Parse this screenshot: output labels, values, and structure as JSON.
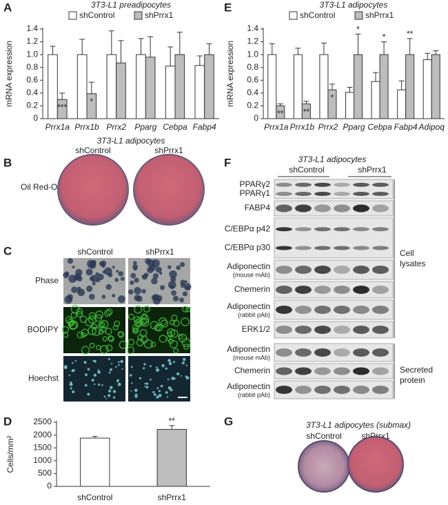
{
  "panel_letters": [
    "A",
    "B",
    "C",
    "D",
    "E",
    "F",
    "G"
  ],
  "chart_data": [
    {
      "type": "bar",
      "title": "3T3-L1 preadipocytes",
      "y_label": "mRNA expression",
      "italic_categories": true,
      "categories": [
        "Prrx1a",
        "Prrx1b",
        "Prrx2",
        "Pparg",
        "Cebpa",
        "Fabp4"
      ],
      "series": [
        {
          "name": "shControl",
          "color": "#ffffff",
          "values": [
            1.0,
            1.0,
            1.0,
            1.0,
            0.82,
            0.83
          ],
          "errors": [
            0.13,
            0.24,
            0.37,
            0.25,
            0.3,
            0.15
          ],
          "annotations": [
            null,
            null,
            null,
            null,
            null,
            null
          ]
        },
        {
          "name": "shPrrx1",
          "color": "#bdbdbd",
          "values": [
            0.3,
            0.39,
            0.87,
            0.96,
            1.0,
            1.0
          ],
          "errors": [
            0.1,
            0.18,
            0.35,
            0.32,
            0.35,
            0.17
          ],
          "annotations": [
            "***",
            "*",
            null,
            null,
            null,
            null
          ]
        }
      ],
      "ylim": [
        0,
        1.4
      ],
      "yticks": [
        0,
        0.2,
        0.4,
        0.6,
        0.8,
        {
          "value": 1,
          "label": "1.0"
        },
        1.2,
        1.4
      ]
    },
    {
      "type": "bar",
      "title": "3T3-L1 adipocytes",
      "y_label": "mRNA expression",
      "italic_categories": true,
      "categories": [
        "Prrx1a",
        "Prrx1b",
        "Prrx2",
        "Pparg",
        "Cebpa",
        "Fabp4",
        "Adipoq"
      ],
      "series": [
        {
          "name": "shControl",
          "color": "#ffffff",
          "values": [
            1.0,
            1.0,
            1.0,
            0.41,
            0.58,
            0.45,
            0.92
          ],
          "errors": [
            0.17,
            0.1,
            0.18,
            0.08,
            0.14,
            0.14,
            0.1
          ],
          "annotations": [
            null,
            null,
            null,
            null,
            null,
            null,
            null
          ]
        },
        {
          "name": "shPrrx1",
          "color": "#bdbdbd",
          "values": [
            0.2,
            0.23,
            0.45,
            1.0,
            1.0,
            1.0,
            1.0
          ],
          "errors": [
            0.03,
            0.04,
            0.09,
            0.32,
            0.2,
            0.25,
            0.06
          ],
          "annotations": [
            "**",
            "**",
            "*",
            "*",
            "*",
            "**",
            null
          ]
        }
      ],
      "ylim": [
        0,
        1.4
      ],
      "yticks": [
        0,
        0.2,
        0.4,
        0.6,
        0.8,
        {
          "value": 1,
          "label": "1.0"
        },
        1.2,
        1.4
      ]
    },
    {
      "type": "bar",
      "y_label": "Cells/mm²",
      "italic_categories": false,
      "categories": [
        "shControl",
        "shPrrx1"
      ],
      "values": [
        1880,
        2220
      ],
      "errors": [
        70,
        150
      ],
      "colors": [
        "#ffffff",
        "#bdbdbd"
      ],
      "annotations": [
        null,
        "**"
      ],
      "ylim": [
        0,
        2500
      ],
      "yticks": [
        0,
        500,
        1000,
        1500,
        2000,
        2500
      ]
    }
  ],
  "panel_b": {
    "title": "3T3-L1 adipocytes",
    "columns": [
      "shControl",
      "shPrrx1"
    ],
    "row_label": "Oil Red-O"
  },
  "panel_c": {
    "columns": [
      "shControl",
      "shPrrx1"
    ],
    "rows": [
      "Phase",
      "BODIPY",
      "Hoechst"
    ]
  },
  "panel_f": {
    "title": "3T3-L1 adipocytes",
    "groups": [
      "shControl",
      "shPrrx1"
    ],
    "lysate_blots": [
      {
        "labels": [
          "PPARγ2",
          "PPARγ1"
        ]
      },
      {
        "labels": [
          "FABP4"
        ]
      },
      {
        "labels": [
          "C/EBPα p42",
          "C/EBPα p30"
        ]
      },
      {
        "labels": [
          "Adiponectin"
        ],
        "note": "(mouse mAb)"
      },
      {
        "labels": [
          "Chemerin"
        ]
      },
      {
        "labels": [
          "Adiponectin"
        ],
        "note": "(rabbit pAb)"
      },
      {
        "labels": [
          "ERK1/2"
        ]
      }
    ],
    "lysate_label": [
      "Cell",
      "lysates"
    ],
    "secreted_blots": [
      {
        "labels": [
          "Adiponectin"
        ],
        "note": "(mouse mAb)"
      },
      {
        "labels": [
          "Chemerin"
        ]
      },
      {
        "labels": [
          "Adiponectin"
        ],
        "note": "(rabbit pAb)"
      }
    ],
    "secreted_label": [
      "Secreted",
      "protein"
    ]
  },
  "panel_g": {
    "title": "3T3-L1 adipocytes (submax)",
    "columns": [
      "shControl",
      "shPrrx1"
    ]
  }
}
